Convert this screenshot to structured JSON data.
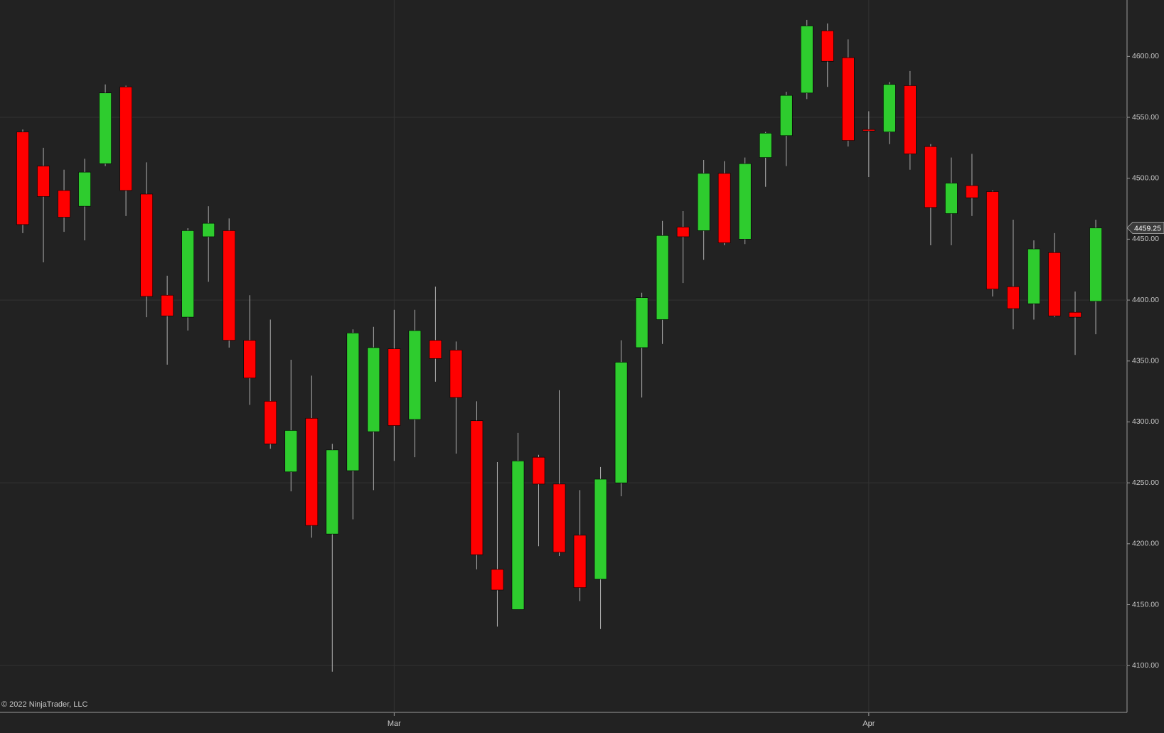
{
  "chart_data": {
    "type": "candlestick",
    "copyright": "© 2022 NinjaTrader, LLC",
    "categories": [
      null,
      null,
      null,
      null,
      null,
      null,
      null,
      null,
      null,
      null,
      null,
      null,
      null,
      null,
      null,
      null,
      null,
      null,
      "Mar",
      null,
      null,
      null,
      null,
      null,
      null,
      null,
      null,
      null,
      null,
      null,
      null,
      null,
      null,
      null,
      null,
      null,
      null,
      null,
      null,
      null,
      null,
      "Apr",
      null,
      null,
      null,
      null,
      null,
      null,
      null,
      null,
      null,
      null,
      null
    ],
    "open": [
      4538,
      4510,
      4490,
      4477,
      4512,
      4575,
      4487,
      4404,
      4386,
      4452,
      4457,
      4367,
      4317,
      4259,
      4303,
      4208,
      4260,
      4292,
      4360,
      4302,
      4367,
      4359,
      4301,
      4179,
      4146,
      4271,
      4249,
      4207,
      4171,
      4250,
      4361,
      4384,
      4460,
      4457,
      4504,
      4450,
      4517,
      4535,
      4570,
      4621,
      4599,
      4540,
      4538,
      4576,
      4526,
      4471,
      4494,
      4489,
      4411,
      4397,
      4439,
      4390,
      4399
    ],
    "high": [
      4540,
      4525,
      4507,
      4516,
      4577,
      4576,
      4513,
      4420,
      4459,
      4477,
      4467,
      4404,
      4384,
      4351,
      4338,
      4282,
      4376,
      4378,
      4392,
      4392,
      4411,
      4366,
      4317,
      4267,
      4291,
      4273,
      4326,
      4244,
      4263,
      4367,
      4406,
      4465,
      4473,
      4515,
      4514,
      4517,
      4538,
      4571,
      4630,
      4627,
      4614,
      4555,
      4579,
      4588,
      4528,
      4517,
      4520,
      4490,
      4466,
      4449,
      4455,
      4407,
      4466
    ],
    "low": [
      4455,
      4431,
      4456,
      4449,
      4510,
      4469,
      4386,
      4347,
      4375,
      4415,
      4361,
      4314,
      4278,
      4243,
      4205,
      4095,
      4220,
      4244,
      4268,
      4271,
      4333,
      4274,
      4179,
      4132,
      4146,
      4198,
      4190,
      4153,
      4130,
      4239,
      4320,
      4364,
      4414,
      4433,
      4445,
      4446,
      4493,
      4510,
      4565,
      4575,
      4526,
      4501,
      4528,
      4507,
      4445,
      4445,
      4469,
      4403,
      4376,
      4384,
      4386,
      4355,
      4372
    ],
    "close": [
      4462,
      4485,
      4468,
      4505,
      4570,
      4490,
      4403,
      4387,
      4457,
      4463,
      4367,
      4336,
      4282,
      4293,
      4215,
      4277,
      4373,
      4361,
      4297,
      4375,
      4352,
      4320,
      4191,
      4162,
      4268,
      4249,
      4193,
      4164,
      4253,
      4349,
      4402,
      4453,
      4452,
      4504,
      4447,
      4512,
      4537,
      4568,
      4625,
      4596,
      4531,
      4539.5,
      4577,
      4520,
      4476,
      4496,
      4484,
      4409,
      4393,
      4442,
      4387,
      4386,
      4459.25
    ],
    "up_color": "#2ecc2e",
    "down_color": "#ff0000",
    "ylim": [
      4061.6,
      4646.3
    ],
    "yticks": [
      {
        "value": 4100,
        "label": "4100.00"
      },
      {
        "value": 4150,
        "label": "4150.00"
      },
      {
        "value": 4200,
        "label": "4200.00"
      },
      {
        "value": 4250,
        "label": "4250.00"
      },
      {
        "value": 4300,
        "label": "4300.00"
      },
      {
        "value": 4350,
        "label": "4350.00"
      },
      {
        "value": 4400,
        "label": "4400.00"
      },
      {
        "value": 4450,
        "label": "4450.00"
      },
      {
        "value": 4500,
        "label": "4500.00"
      },
      {
        "value": 4550,
        "label": "4550.00"
      },
      {
        "value": 4600,
        "label": "4600.00"
      }
    ],
    "y_grid": [
      4100,
      4250,
      4400,
      4550
    ],
    "last_price": {
      "value": 4459.25,
      "label": "4459.25"
    }
  }
}
